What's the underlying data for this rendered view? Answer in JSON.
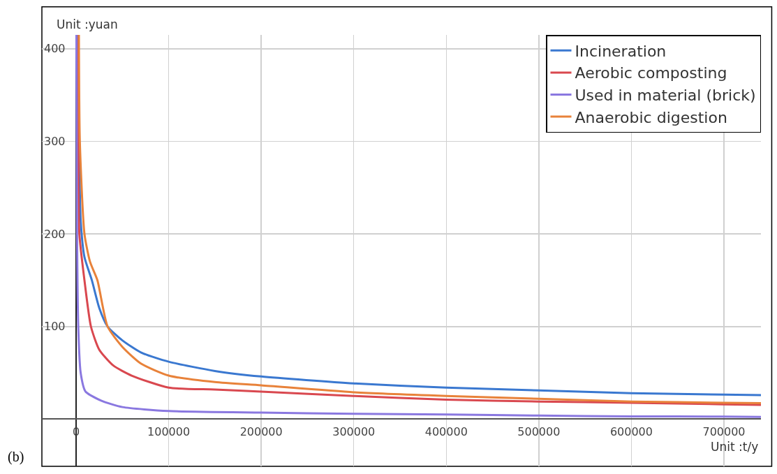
{
  "chart_data": {
    "type": "line",
    "ylabel": "Unit :yuan",
    "xlabel": "Unit :t/y",
    "annotations": [
      "(b)"
    ],
    "xlim": [
      -37000,
      740000
    ],
    "xticks": [
      0,
      100000,
      200000,
      300000,
      400000,
      500000,
      600000,
      700000
    ],
    "ylim": [
      -51,
      415
    ],
    "yticks": [
      100,
      200,
      300,
      400
    ],
    "grid": true,
    "legend": "top right",
    "marker": "none",
    "line_style": "solid",
    "series": [
      {
        "name": "Incineration",
        "color": "#3a78d0",
        "x": [
          1100,
          2300,
          3500,
          4900,
          9000,
          17000,
          25000,
          34000,
          50000,
          70000,
          100000,
          150000,
          200000,
          300000,
          400000,
          500000,
          600000,
          700000,
          740000
        ],
        "values": [
          415,
          330,
          270,
          215,
          175,
          150,
          120,
          100,
          85,
          72,
          62,
          52,
          46,
          38.5,
          34,
          31,
          28,
          26.5,
          26
        ]
      },
      {
        "name": "Aerobic composting",
        "color": "#d9484f",
        "x": [
          800,
          2300,
          3500,
          9000,
          16000,
          25000,
          40000,
          60000,
          100000,
          150000,
          200000,
          300000,
          400000,
          500000,
          600000,
          700000,
          740000
        ],
        "values": [
          415,
          300,
          200,
          150,
          100,
          75,
          58,
          47,
          34,
          32,
          29.6,
          25,
          21,
          19,
          17.7,
          16,
          15.4
        ]
      },
      {
        "name": "Used in material (brick)",
        "color": "#8a78e0",
        "x": [
          300,
          1000,
          2300,
          4900,
          10000,
          27000,
          50000,
          100000,
          200000,
          300000,
          400000,
          500000,
          600000,
          700000,
          740000
        ],
        "values": [
          415,
          200,
          100,
          50,
          30,
          20,
          13,
          8.7,
          7,
          5.8,
          5,
          3.8,
          3,
          2.7,
          2.3
        ]
      },
      {
        "name": "Anaerobic digestion",
        "color": "#e8823a",
        "x": [
          3000,
          4000,
          9000,
          15000,
          23000,
          34000,
          50000,
          70000,
          100000,
          150000,
          200000,
          300000,
          400000,
          500000,
          600000,
          700000,
          740000
        ],
        "values": [
          415,
          300,
          200,
          170,
          150,
          100,
          78,
          60,
          47,
          40,
          36.5,
          29,
          25,
          22,
          19,
          17.7,
          17.3
        ]
      }
    ]
  }
}
